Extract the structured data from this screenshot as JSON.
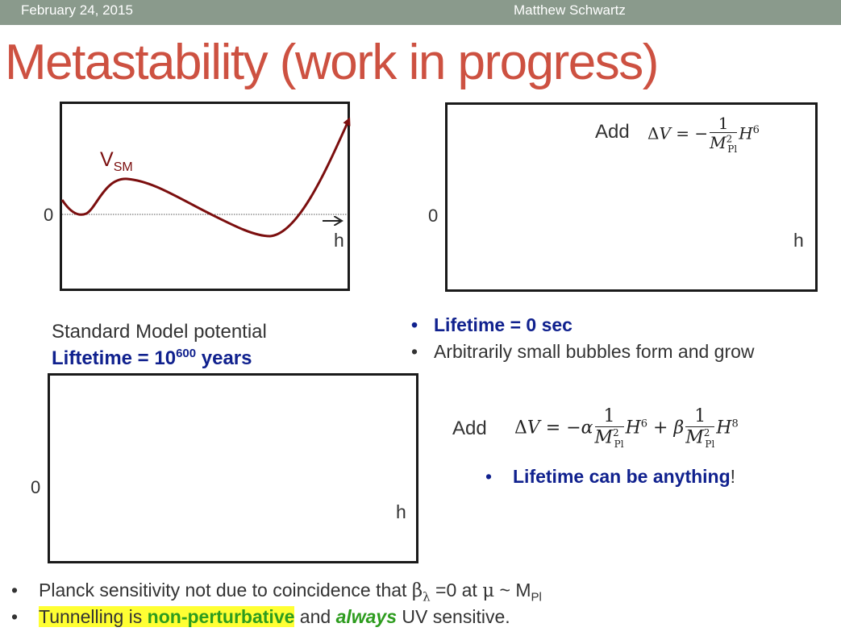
{
  "header": {
    "date": "February 24, 2015",
    "author": "Matthew Schwartz"
  },
  "title": "Metastability (work in progress)",
  "panel1": {
    "zero": "0",
    "h": "h",
    "vsm": "V",
    "vsm_sub": "SM"
  },
  "panel2": {
    "zero": "0",
    "h": "h",
    "add": "Add"
  },
  "panel3": {
    "zero": "0",
    "h": "h"
  },
  "sm_caption": {
    "line1": "Standard Model potential",
    "lifetime_prefix": "Liftetime = 10",
    "lifetime_exp": "600",
    "lifetime_suffix": " years"
  },
  "bullets_right": [
    {
      "text": "Lifetime = 0 sec"
    },
    {
      "text": "Arbitrarily small bubbles form and grow"
    }
  ],
  "add2": {
    "label": "Add",
    "bullet_bold": "Lifetime can be anything",
    "bullet_end": "!"
  },
  "bottom": {
    "b1_pre": "Planck sensitivity not due to coincidence that ",
    "b1_beta": "β",
    "b1_beta_sub": "λ",
    "b1_mid": " =0 at ",
    "b1_mu": "μ",
    "b1_sim": " ~ M",
    "b1_sub": "Pl",
    "b2_hl": "Tunnelling is ",
    "b2_np": "non-perturbative",
    "b2_and": " and ",
    "b2_always": "always",
    "b2_end": " UV sensitive."
  },
  "colors": {
    "curve": "#7b0e0e",
    "title": "#cd5141",
    "navy": "#10218e",
    "green": "#2d9c1e",
    "highlight": "#ffff33",
    "topbar": "#8a9a8c"
  }
}
